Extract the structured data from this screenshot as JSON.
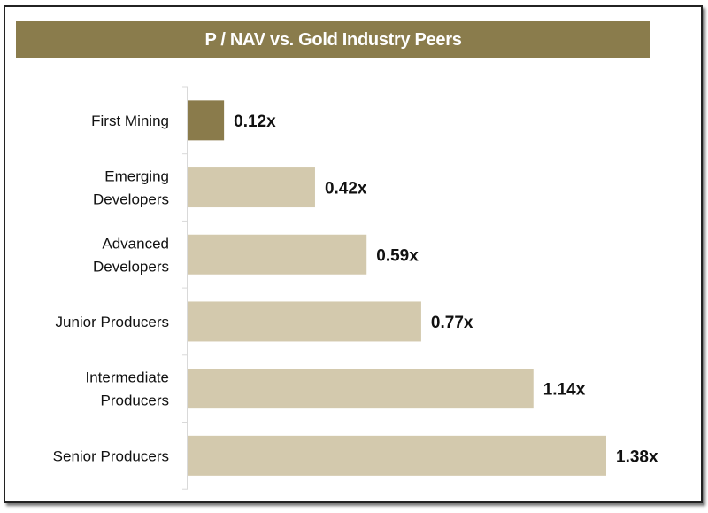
{
  "chart_data": {
    "type": "bar",
    "orientation": "horizontal",
    "title": "P / NAV vs. Gold Industry Peers",
    "categories": [
      [
        "First Mining"
      ],
      [
        "Emerging",
        "Developers"
      ],
      [
        "Advanced",
        "Developers"
      ],
      [
        "Junior Producers"
      ],
      [
        "Intermediate",
        "Producers"
      ],
      [
        "Senior Producers"
      ]
    ],
    "values": [
      0.12,
      0.42,
      0.59,
      0.77,
      1.14,
      1.38
    ],
    "data_labels": [
      "0.12x",
      "0.42x",
      "0.59x",
      "0.77x",
      "1.14x",
      "1.38x"
    ],
    "xlim": [
      0,
      1.38
    ],
    "grid": false,
    "colors": {
      "highlight": "#8a7b4b",
      "peers": "#d3c9ad",
      "title_bg": "#8a7c4c"
    }
  }
}
